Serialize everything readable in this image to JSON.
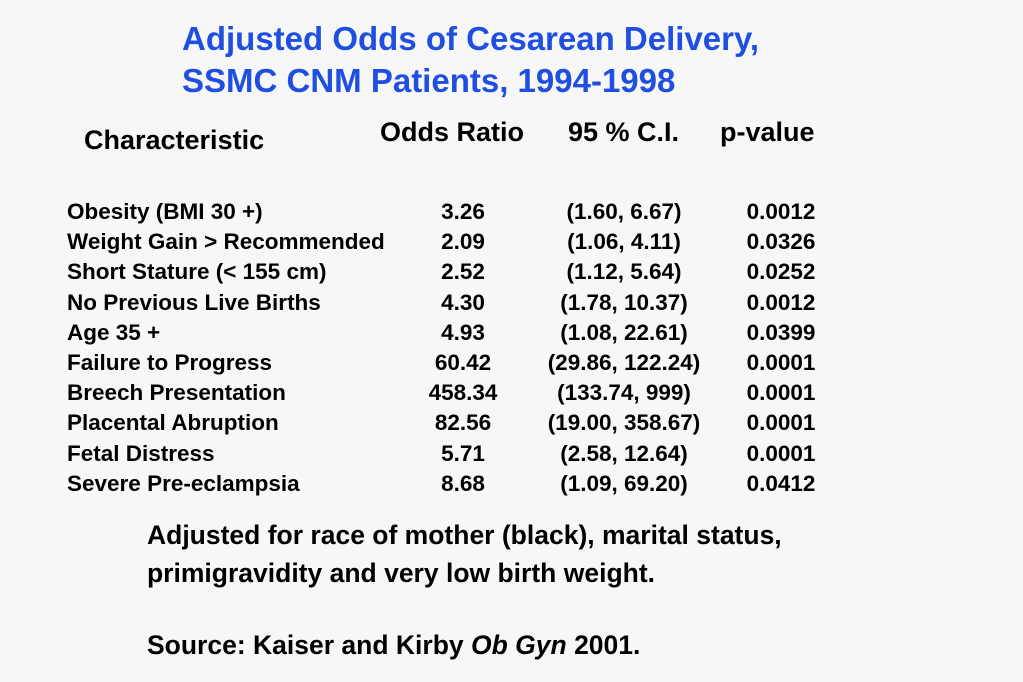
{
  "title": {
    "line1": "Adjusted Odds of Cesarean Delivery,",
    "line2": "SSMC CNM Patients, 1994-1998"
  },
  "headers": {
    "characteristic": "Characteristic",
    "odds_ratio": "Odds Ratio",
    "ci": "95 % C.I.",
    "p_value": "p-value"
  },
  "rows": [
    {
      "characteristic": "Obesity (BMI 30 +)",
      "odds_ratio": "3.26",
      "ci": "(1.60, 6.67)",
      "p_value": "0.0012"
    },
    {
      "characteristic": "Weight Gain > Recommended",
      "odds_ratio": "2.09",
      "ci": "(1.06, 4.11)",
      "p_value": "0.0326"
    },
    {
      "characteristic": "Short Stature (< 155 cm)",
      "odds_ratio": "2.52",
      "ci": "(1.12, 5.64)",
      "p_value": "0.0252"
    },
    {
      "characteristic": "No Previous Live Births",
      "odds_ratio": "4.30",
      "ci": "(1.78, 10.37)",
      "p_value": "0.0012"
    },
    {
      "characteristic": "Age 35 +",
      "odds_ratio": "4.93",
      "ci": "(1.08, 22.61)",
      "p_value": "0.0399"
    },
    {
      "characteristic": "Failure to Progress",
      "odds_ratio": "60.42",
      "ci": "(29.86, 122.24)",
      "p_value": "0.0001"
    },
    {
      "characteristic": "Breech Presentation",
      "odds_ratio": "458.34",
      "ci": "(133.74, 999)",
      "p_value": "0.0001"
    },
    {
      "characteristic": "Placental Abruption",
      "odds_ratio": "82.56",
      "ci": "(19.00, 358.67)",
      "p_value": "0.0001"
    },
    {
      "characteristic": "Fetal Distress",
      "odds_ratio": "5.71",
      "ci": "(2.58, 12.64)",
      "p_value": "0.0001"
    },
    {
      "characteristic": "Severe Pre-eclampsia",
      "odds_ratio": "8.68",
      "ci": "(1.09, 69.20)",
      "p_value": "0.0412"
    }
  ],
  "note": {
    "line1": "Adjusted for race of mother (black), marital status,",
    "line2": "primigravidity and very low birth weight."
  },
  "source": {
    "prefix": "Source: Kaiser and Kirby ",
    "journal": "Ob Gyn",
    "suffix": " 2001."
  },
  "colors": {
    "title": "#1f4fe0",
    "text": "#000000",
    "background": "#f7f7f7"
  }
}
